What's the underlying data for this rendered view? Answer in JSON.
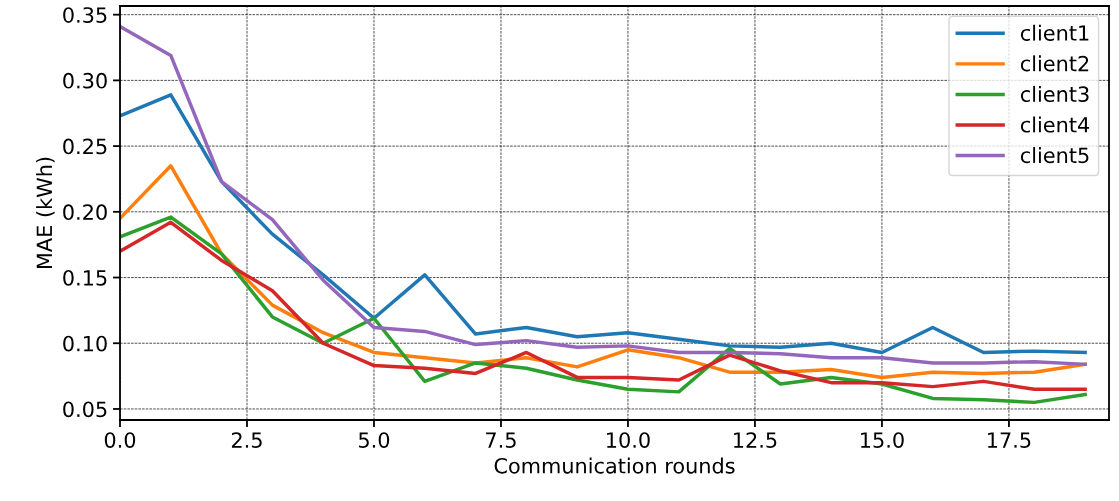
{
  "chart_data": {
    "type": "line",
    "xlabel": "Communication rounds",
    "ylabel": "MAE (kWh)",
    "x": [
      0,
      1,
      2,
      3,
      4,
      5,
      6,
      7,
      8,
      9,
      10,
      11,
      12,
      13,
      14,
      15,
      16,
      17,
      18,
      19
    ],
    "xlim": [
      0,
      19.47
    ],
    "xticks": [
      {
        "value": 0,
        "label": "0.0"
      },
      {
        "value": 2.5,
        "label": "2.5"
      },
      {
        "value": 5,
        "label": "5.0"
      },
      {
        "value": 7.5,
        "label": "7.5"
      },
      {
        "value": 10,
        "label": "10.0"
      },
      {
        "value": 12.5,
        "label": "12.5"
      },
      {
        "value": 15,
        "label": "15.0"
      },
      {
        "value": 17.5,
        "label": "17.5"
      }
    ],
    "ylim": [
      0.0416,
      0.3566
    ],
    "yticks": [
      {
        "value": 0.05,
        "label": "0.05"
      },
      {
        "value": 0.1,
        "label": "0.10"
      },
      {
        "value": 0.15,
        "label": "0.15"
      },
      {
        "value": 0.2,
        "label": "0.20"
      },
      {
        "value": 0.25,
        "label": "0.25"
      },
      {
        "value": 0.3,
        "label": "0.30"
      },
      {
        "value": 0.35,
        "label": "0.35"
      }
    ],
    "grid": true,
    "legend": "top right",
    "line_style": "solid",
    "marker": "none",
    "series": [
      {
        "name": "client1",
        "color": "#1f77b4",
        "values": [
          0.273,
          0.289,
          0.223,
          0.183,
          0.152,
          0.119,
          0.152,
          0.107,
          0.112,
          0.105,
          0.108,
          0.103,
          0.098,
          0.097,
          0.1,
          0.093,
          0.112,
          0.093,
          0.094,
          0.093
        ]
      },
      {
        "name": "client2",
        "color": "#ff7f0e",
        "values": [
          0.195,
          0.235,
          0.168,
          0.129,
          0.108,
          0.093,
          0.089,
          0.085,
          0.089,
          0.082,
          0.095,
          0.089,
          0.078,
          0.078,
          0.08,
          0.074,
          0.078,
          0.077,
          0.078,
          0.084
        ]
      },
      {
        "name": "client3",
        "color": "#2ca02c",
        "values": [
          0.181,
          0.196,
          0.168,
          0.12,
          0.1,
          0.119,
          0.071,
          0.085,
          0.081,
          0.072,
          0.065,
          0.063,
          0.096,
          0.069,
          0.074,
          0.069,
          0.058,
          0.057,
          0.055,
          0.061
        ]
      },
      {
        "name": "client4",
        "color": "#d62728",
        "values": [
          0.17,
          0.192,
          0.163,
          0.14,
          0.1,
          0.083,
          0.081,
          0.077,
          0.093,
          0.074,
          0.074,
          0.072,
          0.091,
          0.079,
          0.07,
          0.07,
          0.067,
          0.071,
          0.065,
          0.065
        ]
      },
      {
        "name": "client5",
        "color": "#9467bd",
        "values": [
          0.341,
          0.319,
          0.223,
          0.194,
          0.148,
          0.112,
          0.109,
          0.099,
          0.102,
          0.097,
          0.098,
          0.093,
          0.093,
          0.092,
          0.089,
          0.089,
          0.085,
          0.085,
          0.086,
          0.084
        ]
      }
    ]
  }
}
